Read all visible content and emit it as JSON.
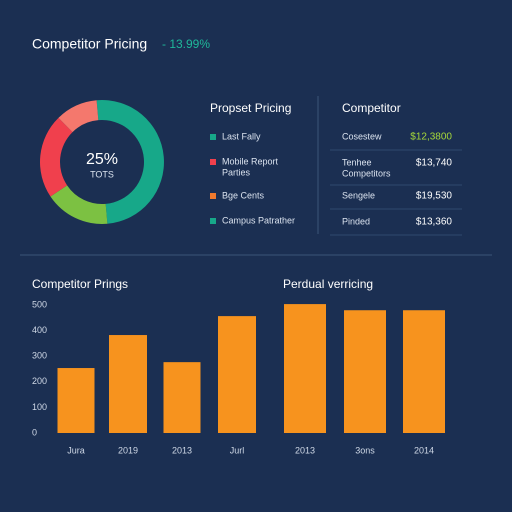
{
  "header": {
    "title": "Competitor Pricing",
    "change": "- 13.99%",
    "change_color": "#1fb89a"
  },
  "chart_data": [
    {
      "type": "pie",
      "values": [
        50,
        17,
        22,
        11
      ],
      "colors": [
        "#17a889",
        "#7cc142",
        "#f0404d",
        "#f4786d"
      ],
      "center_label": "25%",
      "center_sublabel": "TOTS"
    },
    {
      "type": "bar",
      "title": "Competitor Prings",
      "subtitle": "Perdual verricing",
      "categories": [
        "Jura",
        "2019",
        "2013",
        "Jurl",
        "2013",
        "3ons",
        "2014"
      ],
      "values": [
        254,
        383,
        277,
        457,
        504,
        480,
        480
      ],
      "color": "#f7931e",
      "ylim": [
        0,
        520
      ],
      "yticks": [
        0,
        100,
        200,
        300,
        400,
        500
      ],
      "grid": false
    }
  ],
  "legend": {
    "title": "Propset Pricing",
    "items": [
      {
        "lines": [
          "Last Fally"
        ],
        "color": "#17a889"
      },
      {
        "lines": [
          "Mobile Report",
          "Parties"
        ],
        "color": "#f0404d"
      },
      {
        "lines": [
          "Bge Cents"
        ],
        "color": "#f07a2e"
      },
      {
        "lines": [
          "Campus Patrather"
        ],
        "color": "#17a889"
      }
    ]
  },
  "table": {
    "title": "Competitor",
    "rows": [
      {
        "name": [
          "Cosestew"
        ],
        "price": "$12,3800",
        "color": "#a6d83a"
      },
      {
        "name": [
          "Tenhee",
          "Competitors"
        ],
        "price": "$13,740",
        "color": "#ffffff"
      },
      {
        "name": [
          "Sengele"
        ],
        "price": "$19,530",
        "color": "#ffffff"
      },
      {
        "name": [
          "Pinded"
        ],
        "price": "$13,360",
        "color": "#ffffff"
      }
    ]
  }
}
